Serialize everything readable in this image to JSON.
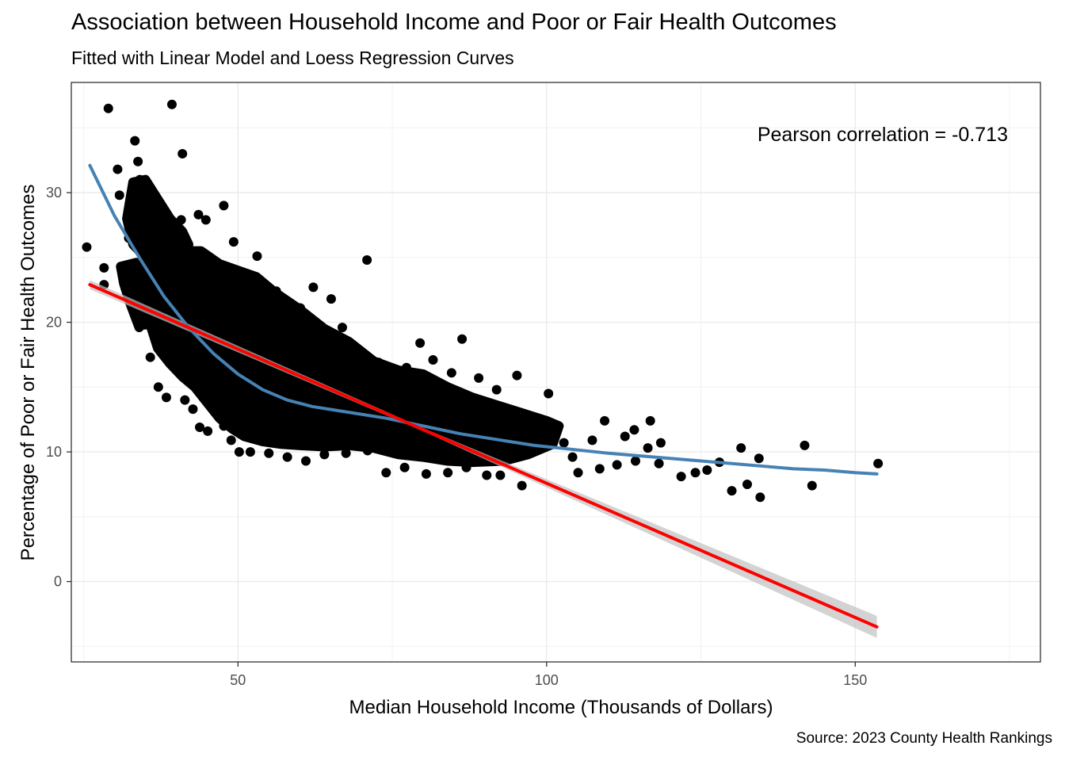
{
  "chart_data": {
    "type": "scatter",
    "title": "Association between Household Income and Poor or Fair Health Outcomes",
    "subtitle": "Fitted with Linear Model and Loess Regression Curves",
    "caption": "Source: 2023 County Health Rankings",
    "xlabel": "Median Household Income (Thousands of Dollars)",
    "ylabel": "Percentage of Poor or Fair Health Outcomes",
    "xlim": [
      23,
      180
    ],
    "ylim": [
      -6.2,
      38.5
    ],
    "x_ticks": [
      50,
      100,
      150
    ],
    "y_ticks": [
      0,
      10,
      20,
      30
    ],
    "grid": true,
    "annotation": "Pearson correlation = -0.713",
    "colors": {
      "points": "#000000",
      "linear": "#ff0000",
      "loess": "#4682b4",
      "band": "#c0c0c0"
    },
    "scatter_points": [
      [
        25.5,
        25.8
      ],
      [
        28.3,
        22.9
      ],
      [
        28.3,
        24.2
      ],
      [
        29.0,
        36.5
      ],
      [
        30.5,
        31.8
      ],
      [
        30.8,
        29.8
      ],
      [
        32.3,
        26.5
      ],
      [
        32.7,
        29.5
      ],
      [
        33.3,
        34.0
      ],
      [
        33.8,
        32.4
      ],
      [
        34.1,
        31.0
      ],
      [
        35.0,
        27.4
      ],
      [
        35.8,
        30.3
      ],
      [
        36.2,
        26.0
      ],
      [
        36.5,
        28.6
      ],
      [
        37.1,
        24.9
      ],
      [
        38.5,
        23.8
      ],
      [
        39.3,
        36.8
      ],
      [
        40.8,
        27.9
      ],
      [
        41.0,
        33.0
      ],
      [
        42.5,
        25.1
      ],
      [
        43.6,
        28.3
      ],
      [
        44.8,
        27.9
      ],
      [
        46.1,
        23.4
      ],
      [
        47.7,
        29.0
      ],
      [
        49.3,
        26.2
      ],
      [
        53.1,
        25.1
      ],
      [
        62.2,
        22.7
      ],
      [
        70.9,
        24.8
      ],
      [
        34.9,
        19.8
      ],
      [
        35.8,
        17.3
      ],
      [
        37.1,
        15.0
      ],
      [
        38.4,
        14.2
      ],
      [
        41.4,
        14.0
      ],
      [
        42.7,
        13.3
      ],
      [
        43.8,
        11.9
      ],
      [
        45.1,
        11.6
      ],
      [
        46.4,
        13.4
      ],
      [
        47.7,
        12.0
      ],
      [
        48.9,
        10.9
      ],
      [
        50.2,
        10.0
      ],
      [
        52.0,
        10.0
      ],
      [
        55.0,
        9.9
      ],
      [
        58.0,
        9.6
      ],
      [
        61.0,
        9.3
      ],
      [
        64.0,
        9.8
      ],
      [
        67.5,
        9.9
      ],
      [
        71.0,
        10.1
      ],
      [
        74.0,
        8.4
      ],
      [
        77.0,
        8.8
      ],
      [
        80.5,
        8.3
      ],
      [
        84.0,
        8.4
      ],
      [
        87.0,
        8.8
      ],
      [
        90.3,
        8.2
      ],
      [
        92.5,
        8.2
      ],
      [
        96.0,
        7.4
      ],
      [
        100.3,
        14.5
      ],
      [
        102.8,
        10.7
      ],
      [
        105.1,
        8.4
      ],
      [
        108.6,
        8.7
      ],
      [
        111.4,
        9.0
      ],
      [
        114.4,
        9.3
      ],
      [
        116.4,
        10.3
      ],
      [
        118.2,
        9.1
      ],
      [
        121.8,
        8.1
      ],
      [
        124.1,
        8.4
      ],
      [
        126.0,
        8.6
      ],
      [
        128.0,
        9.2
      ],
      [
        130.0,
        7.0
      ],
      [
        131.5,
        10.3
      ],
      [
        132.5,
        7.5
      ],
      [
        134.4,
        9.5
      ],
      [
        134.6,
        6.5
      ],
      [
        141.8,
        10.5
      ],
      [
        143.0,
        7.4
      ],
      [
        153.7,
        9.1
      ],
      [
        109.4,
        12.4
      ],
      [
        112.7,
        11.2
      ],
      [
        114.2,
        11.7
      ],
      [
        116.8,
        12.4
      ],
      [
        118.5,
        10.7
      ],
      [
        99.8,
        12.4
      ],
      [
        91.0,
        13.0
      ],
      [
        95.2,
        15.9
      ],
      [
        86.3,
        18.7
      ],
      [
        88.0,
        14.1
      ],
      [
        84.6,
        16.1
      ],
      [
        79.5,
        18.4
      ],
      [
        72.8,
        16.9
      ],
      [
        65.1,
        21.8
      ],
      [
        60.1,
        21.1
      ],
      [
        56.0,
        20.2
      ],
      [
        53.0,
        23.0
      ],
      [
        66.9,
        19.6
      ],
      [
        68.6,
        18.1
      ],
      [
        74.7,
        16.5
      ],
      [
        77.3,
        16.5
      ],
      [
        81.6,
        17.1
      ],
      [
        85.9,
        12.9
      ],
      [
        92.2,
        12.0
      ],
      [
        104.2,
        9.6
      ],
      [
        107.4,
        10.9
      ],
      [
        89.0,
        15.7
      ],
      [
        91.9,
        14.8
      ],
      [
        60.6,
        20.6
      ],
      [
        56.2,
        22.4
      ]
    ],
    "cluster_polygons": [
      [
        [
          35,
          27.0
        ],
        [
          37,
          26.2
        ],
        [
          40,
          25.5
        ],
        [
          44,
          25.5
        ],
        [
          47,
          24.5
        ],
        [
          50,
          24.0
        ],
        [
          53,
          23.5
        ],
        [
          56,
          22.3
        ],
        [
          60,
          21.0
        ],
        [
          64,
          19.5
        ],
        [
          68,
          18.5
        ],
        [
          72,
          17.0
        ],
        [
          76,
          16.3
        ],
        [
          80,
          16.0
        ],
        [
          84,
          15.0
        ],
        [
          88,
          14.2
        ],
        [
          92,
          13.6
        ],
        [
          96,
          13.0
        ],
        [
          100,
          12.4
        ],
        [
          102,
          12.0
        ],
        [
          101,
          10.6
        ],
        [
          97,
          9.8
        ],
        [
          93,
          9.3
        ],
        [
          88,
          9.2
        ],
        [
          84,
          9.3
        ],
        [
          80,
          9.6
        ],
        [
          76,
          9.8
        ],
        [
          72,
          10.3
        ],
        [
          68,
          10.5
        ],
        [
          64,
          10.4
        ],
        [
          60,
          10.5
        ],
        [
          57,
          10.6
        ],
        [
          54,
          10.8
        ],
        [
          51,
          11.2
        ],
        [
          49,
          11.8
        ],
        [
          47,
          12.6
        ],
        [
          45,
          13.8
        ],
        [
          43,
          15.0
        ],
        [
          41,
          15.8
        ],
        [
          39,
          16.8
        ],
        [
          37,
          18.0
        ],
        [
          36,
          19.5
        ],
        [
          35,
          21.5
        ],
        [
          34.6,
          24.0
        ]
      ],
      [
        [
          33,
          30.8
        ],
        [
          35,
          31.0
        ],
        [
          37,
          29.5
        ],
        [
          39,
          28.0
        ],
        [
          41,
          27.0
        ],
        [
          42,
          26.0
        ],
        [
          38,
          25.3
        ],
        [
          35,
          25.0
        ],
        [
          33,
          26.0
        ],
        [
          32,
          28.0
        ]
      ],
      [
        [
          31,
          24.3
        ],
        [
          33.5,
          24.6
        ],
        [
          35.5,
          23.5
        ],
        [
          35.5,
          20.5
        ],
        [
          34,
          19.6
        ],
        [
          32.5,
          21.5
        ],
        [
          31.5,
          23.0
        ]
      ]
    ],
    "linear_fit": [
      [
        26,
        22.9
      ],
      [
        153.5,
        -3.5
      ]
    ],
    "loess_fit": [
      [
        26,
        32.1
      ],
      [
        30,
        28.2
      ],
      [
        34,
        25.0
      ],
      [
        38,
        22.0
      ],
      [
        42,
        19.6
      ],
      [
        46,
        17.6
      ],
      [
        50,
        16.0
      ],
      [
        54,
        14.8
      ],
      [
        58,
        14.0
      ],
      [
        62,
        13.5
      ],
      [
        66,
        13.2
      ],
      [
        70,
        12.9
      ],
      [
        74,
        12.6
      ],
      [
        78,
        12.2
      ],
      [
        82,
        11.8
      ],
      [
        86,
        11.4
      ],
      [
        90,
        11.1
      ],
      [
        94,
        10.8
      ],
      [
        98,
        10.5
      ],
      [
        102,
        10.3
      ],
      [
        106,
        10.1
      ],
      [
        110,
        9.9
      ],
      [
        115,
        9.7
      ],
      [
        120,
        9.5
      ],
      [
        125,
        9.3
      ],
      [
        130,
        9.1
      ],
      [
        135,
        8.9
      ],
      [
        140,
        8.7
      ],
      [
        145,
        8.6
      ],
      [
        150,
        8.4
      ],
      [
        153.5,
        8.3
      ]
    ],
    "linear_ci": {
      "x": [
        [
          26,
          0.35
        ],
        [
          80,
          0.12
        ],
        [
          153.5,
          0.85
        ]
      ]
    }
  }
}
